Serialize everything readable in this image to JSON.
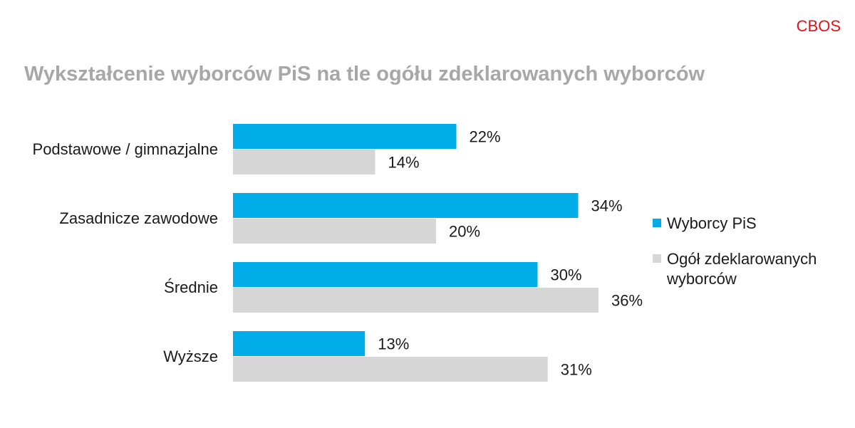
{
  "brand": "CBOS",
  "chart_data": {
    "type": "bar",
    "orientation": "horizontal",
    "title": "Wykształcenie wyborców PiS na tle ogółu zdeklarowanych wyborców",
    "categories": [
      "Podstawowe / gimnazjalne",
      "Zasadnicze zawodowe",
      "Średnie",
      "Wyższe"
    ],
    "series": [
      {
        "name": "Wyborcy PiS",
        "values": [
          22,
          34,
          30,
          13
        ],
        "labels": [
          "22%",
          "34%",
          "30%",
          "13%"
        ],
        "color": "#00ade8"
      },
      {
        "name": "Ogół zdeklarowanych wyborców",
        "values": [
          14,
          20,
          36,
          31
        ],
        "labels": [
          "14%",
          "20%",
          "36%",
          "31%"
        ],
        "color": "#d6d6d6"
      }
    ],
    "xlim": [
      0,
      36
    ],
    "unit": "%",
    "grid": false,
    "legend_position": "right"
  }
}
